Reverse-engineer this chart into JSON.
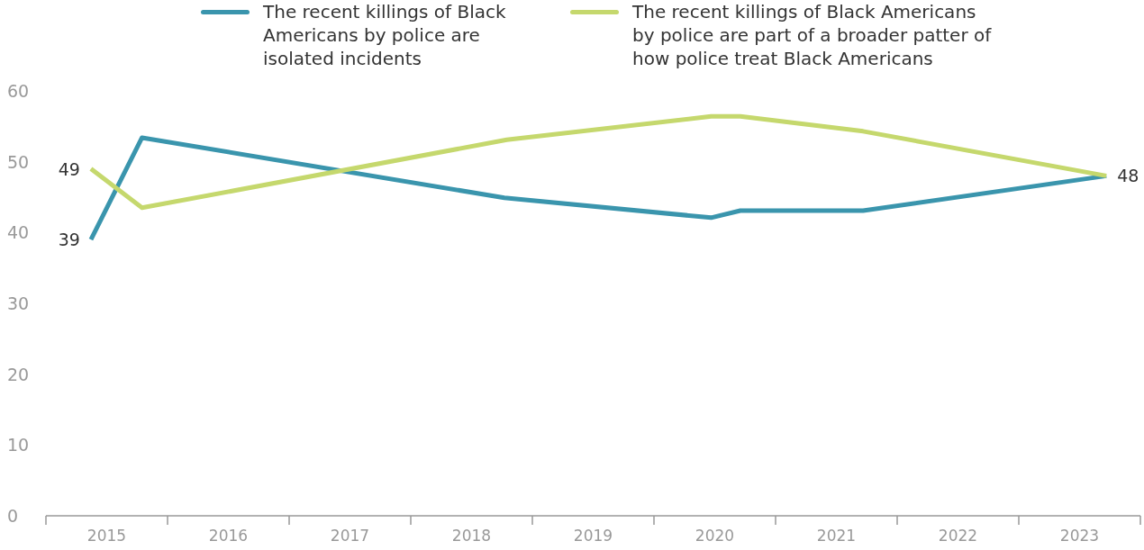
{
  "chart_data": {
    "type": "line",
    "xlim": [
      2015,
      2024
    ],
    "xticks": [
      {
        "value": 2015,
        "label": null
      },
      {
        "value": 2015.5,
        "label": "2015"
      },
      {
        "value": 2016,
        "label": null
      },
      {
        "value": 2016.5,
        "label": "2016"
      },
      {
        "value": 2017,
        "label": null
      },
      {
        "value": 2017.5,
        "label": "2017"
      },
      {
        "value": 2018,
        "label": null
      },
      {
        "value": 2018.5,
        "label": "2018"
      },
      {
        "value": 2019,
        "label": null
      },
      {
        "value": 2019.5,
        "label": "2019"
      },
      {
        "value": 2020,
        "label": null
      },
      {
        "value": 2020.5,
        "label": "2020"
      },
      {
        "value": 2021,
        "label": null
      },
      {
        "value": 2021.5,
        "label": "2021"
      },
      {
        "value": 2022,
        "label": null
      },
      {
        "value": 2022.5,
        "label": "2022"
      },
      {
        "value": 2023,
        "label": null
      },
      {
        "value": 2023.5,
        "label": "2023"
      },
      {
        "value": 2024,
        "label": null
      }
    ],
    "ylim": [
      0,
      60
    ],
    "yticks": [
      0,
      10,
      20,
      30,
      40,
      50,
      60
    ],
    "grid": false,
    "legend": "top",
    "marker": "none",
    "line_style": "solid",
    "series": [
      {
        "name": "The recent killings of Black Americans by police are isolated incidents",
        "color": "#3a95ad",
        "x": [
          2015.37,
          2015.79,
          2018.77,
          2020.47,
          2020.71,
          2021.72,
          2023.72
        ],
        "values": [
          39,
          53.4,
          44.9,
          42.1,
          43.1,
          43.1,
          48
        ],
        "value_labels": [
          "39",
          null,
          null,
          null,
          null,
          null,
          "48"
        ]
      },
      {
        "name": "The recent killings of Black Americans by police are part of a broader patter of how police treat Black Americans",
        "color": "#c5d86d",
        "x": [
          2015.37,
          2015.79,
          2018.79,
          2020.47,
          2020.71,
          2021.72,
          2023.72
        ],
        "values": [
          49,
          43.5,
          53.1,
          56.4,
          56.4,
          54.3,
          48
        ],
        "value_labels": [
          "49",
          null,
          null,
          null,
          null,
          null,
          null
        ]
      }
    ]
  }
}
